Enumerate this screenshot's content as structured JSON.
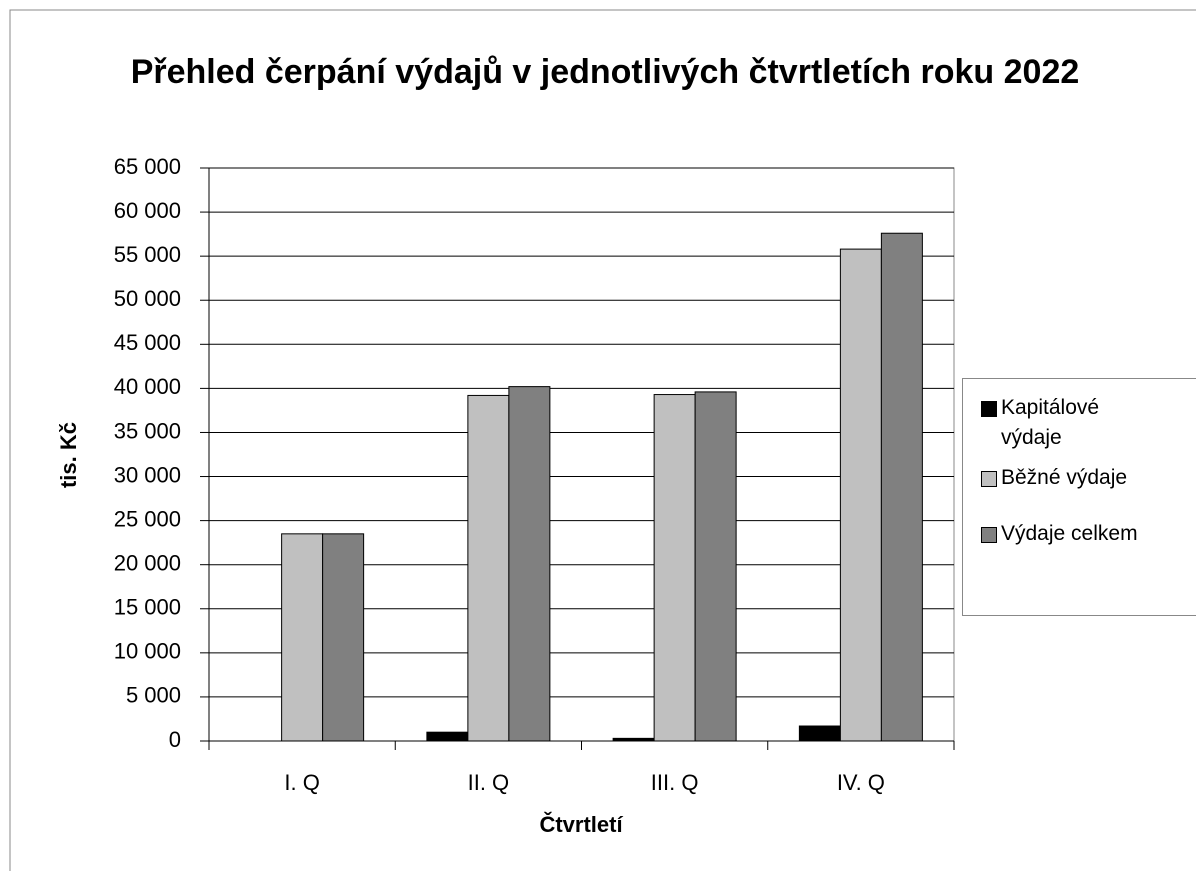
{
  "chart_data": {
    "type": "bar",
    "title": "Přehled čerpání výdajů v jednotlivých čtvrtletích roku 2022",
    "x_label": "Čtvrtletí",
    "y_label": "tis. Kč",
    "categories": [
      "I. Q",
      "II. Q",
      "III. Q",
      "IV. Q"
    ],
    "series": [
      {
        "name": "Kapitálové výdaje",
        "color": "#000000",
        "values": [
          0,
          1000,
          300,
          1700
        ]
      },
      {
        "name": "Běžné výdaje",
        "color": "#c0c0c0",
        "values": [
          23500,
          39200,
          39300,
          55800
        ]
      },
      {
        "name": "Výdaje celkem",
        "color": "#808080",
        "values": [
          23500,
          40200,
          39600,
          57600
        ]
      }
    ],
    "ylim": [
      0,
      65000
    ],
    "yticks": [
      0,
      {
        "value": 5000,
        "label": "5 000"
      },
      {
        "value": 10000,
        "label": "10 000"
      },
      {
        "value": 15000,
        "label": "15 000"
      },
      {
        "value": 20000,
        "label": "20 000"
      },
      {
        "value": 25000,
        "label": "25 000"
      },
      {
        "value": 30000,
        "label": "30 000"
      },
      {
        "value": 35000,
        "label": "35 000"
      },
      {
        "value": 40000,
        "label": "40 000"
      },
      {
        "value": 45000,
        "label": "45 000"
      },
      {
        "value": 50000,
        "label": "50 000"
      },
      {
        "value": 55000,
        "label": "55 000"
      },
      {
        "value": 60000,
        "label": "60 000"
      },
      {
        "value": 65000,
        "label": "65 000"
      }
    ],
    "grid": true,
    "legend": "right"
  }
}
